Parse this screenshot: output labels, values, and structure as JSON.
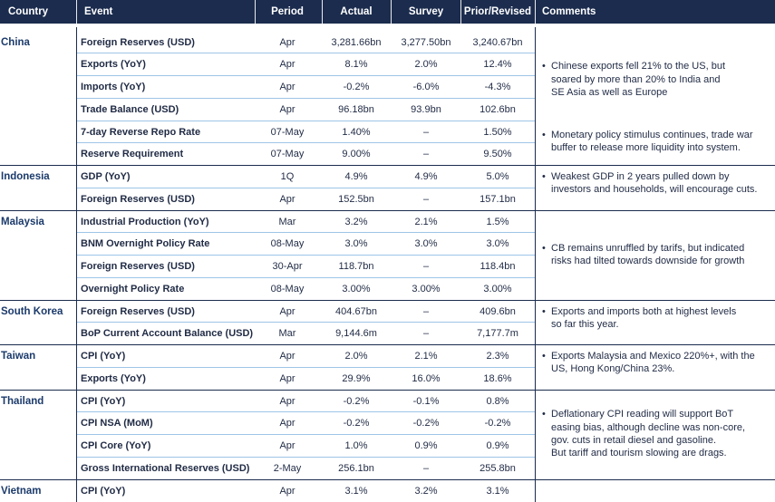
{
  "headers": {
    "country": "Country",
    "event": "Event",
    "period": "Period",
    "actual": "Actual",
    "survey": "Survey",
    "prior": "Prior/Revised",
    "comments": "Comments"
  },
  "groups": [
    {
      "country": "China",
      "rows": [
        {
          "event": "Foreign Reserves (USD)",
          "period": "Apr",
          "actual": "3,281.66bn",
          "survey": "3,277.50bn",
          "prior": "3,240.67bn"
        },
        {
          "event": "Exports (YoY)",
          "period": "Apr",
          "actual": "8.1%",
          "survey": "2.0%",
          "prior": "12.4%"
        },
        {
          "event": "Imports (YoY)",
          "period": "Apr",
          "actual": "-0.2%",
          "survey": "-6.0%",
          "prior": "-4.3%"
        },
        {
          "event": "Trade Balance (USD)",
          "period": "Apr",
          "actual": "96.18bn",
          "survey": "93.9bn",
          "prior": "102.6bn"
        },
        {
          "event": "7-day Reverse Repo Rate",
          "period": "07-May",
          "actual": "1.40%",
          "survey": "–",
          "prior": "1.50%"
        },
        {
          "event": "Reserve Requirement",
          "period": "07-May",
          "actual": "9.00%",
          "survey": "–",
          "prior": "9.50%"
        }
      ],
      "comments": [
        {
          "bullet": "•",
          "lines": [
            "Chinese exports fell 21% to the US, but",
            "soared by more than 20% to India and",
            "SE Asia as well as Europe"
          ]
        },
        {
          "bullet": "•",
          "lines": [
            "Monetary policy stimulus continues, trade war",
            "buffer to release more liquidity into system."
          ]
        }
      ]
    },
    {
      "country": "Indonesia",
      "rows": [
        {
          "event": "GDP (YoY)",
          "period": "1Q",
          "actual": "4.9%",
          "survey": "4.9%",
          "prior": "5.0%"
        },
        {
          "event": "Foreign Reserves (USD)",
          "period": "Apr",
          "actual": "152.5bn",
          "survey": "–",
          "prior": "157.1bn"
        }
      ],
      "comments": [
        {
          "bullet": "•",
          "lines": [
            "Weakest GDP in 2 years pulled down by",
            "investors and households, will encourage cuts."
          ]
        }
      ]
    },
    {
      "country": "Malaysia",
      "rows": [
        {
          "event": "Industrial Production (YoY)",
          "period": "Mar",
          "actual": "3.2%",
          "survey": "2.1%",
          "prior": "1.5%"
        },
        {
          "event": "BNM Overnight Policy Rate",
          "period": "08-May",
          "actual": "3.0%",
          "survey": "3.0%",
          "prior": "3.0%"
        },
        {
          "event": "Foreign Reserves (USD)",
          "period": "30-Apr",
          "actual": "118.7bn",
          "survey": "–",
          "prior": "118.4bn"
        },
        {
          "event": "Overnight Policy Rate",
          "period": "08-May",
          "actual": "3.00%",
          "survey": "3.00%",
          "prior": "3.00%"
        }
      ],
      "comments": [
        {
          "bullet": "•",
          "lines": [
            "CB remains unruffled by tarifs, but indicated",
            "risks had tilted towards downside for growth"
          ]
        }
      ]
    },
    {
      "country": "South Korea",
      "rows": [
        {
          "event": "Foreign Reserves (USD)",
          "period": "Apr",
          "actual": "404.67bn",
          "survey": "–",
          "prior": "409.6bn"
        },
        {
          "event": "BoP Current Account Balance (USD)",
          "period": "Mar",
          "actual": "9,144.6m",
          "survey": "–",
          "prior": "7,177.7m"
        }
      ],
      "comments": [
        {
          "bullet": "•",
          "lines": [
            "Exports and imports both at highest levels",
            "so far this year."
          ]
        }
      ]
    },
    {
      "country": "Taiwan",
      "rows": [
        {
          "event": "CPI (YoY)",
          "period": "Apr",
          "actual": "2.0%",
          "survey": "2.1%",
          "prior": "2.3%"
        },
        {
          "event": "Exports (YoY)",
          "period": "Apr",
          "actual": "29.9%",
          "survey": "16.0%",
          "prior": "18.6%"
        }
      ],
      "comments": [
        {
          "bullet": "•",
          "lines": [
            "Exports Malaysia and Mexico 220%+, with the",
            "US, Hong Kong/China 23%."
          ]
        }
      ]
    },
    {
      "country": "Thailand",
      "rows": [
        {
          "event": "CPI (YoY)",
          "period": "Apr",
          "actual": "-0.2%",
          "survey": "-0.1%",
          "prior": "0.8%"
        },
        {
          "event": "CPI NSA (MoM)",
          "period": "Apr",
          "actual": "-0.2%",
          "survey": "-0.2%",
          "prior": "-0.2%"
        },
        {
          "event": "CPI Core (YoY)",
          "period": "Apr",
          "actual": "1.0%",
          "survey": "0.9%",
          "prior": "0.9%"
        },
        {
          "event": "Gross International Reserves (USD)",
          "period": "2-May",
          "actual": "256.1bn",
          "survey": "–",
          "prior": "255.8bn"
        }
      ],
      "comments": [
        {
          "bullet": "•",
          "lines": [
            "Deflationary CPI reading will support BoT",
            "easing bias, although decline was non-core,",
            "gov. cuts in retail diesel and gasoline.",
            "But tariff and tourism slowing are drags."
          ]
        }
      ]
    },
    {
      "country": "Vietnam",
      "rows": [
        {
          "event": "CPI (YoY)",
          "period": "Apr",
          "actual": "3.1%",
          "survey": "3.2%",
          "prior": "3.1%"
        }
      ],
      "comments": []
    }
  ]
}
